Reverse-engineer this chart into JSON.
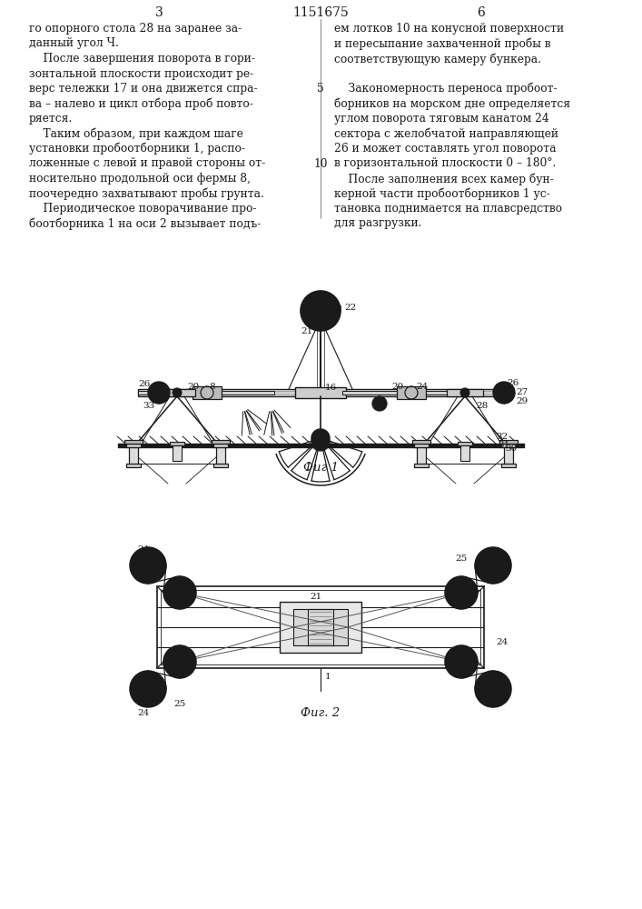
{
  "patent_number": "1151675",
  "page_left": "3",
  "page_right": "6",
  "background_color": "#ffffff",
  "fig1_caption": "Фиг 1",
  "fig2_caption": "Фиг. 2",
  "left_col_lines": [
    "го опорного стола 28 на заранее за-",
    "данный угол Ч.",
    "    После завершения поворота в гори-",
    "зонтальной плоскости происходит ре-",
    "верс тележки 17 и она движется спра-",
    "ва – налево и цикл отбора проб повто-",
    "ряется.",
    "    Таким образом, при каждом шаге",
    "установки пробоотборники 1, распо-",
    "ложенные с левой и правой стороны от-",
    "носительно продольной оси фермы 8,",
    "поочередно захватывают пробы грунта.",
    "    Периодическое поворачивание про-",
    "боотборника 1 на оси 2 вызывает подъ-"
  ],
  "right_col_lines": [
    "ем лотков 10 на конусной поверхности",
    "и пересыпание захваченной пробы в",
    "соответствующую камеру бункера.",
    "",
    "    Закономерность переноса пробоот-",
    "борников на морском дне определяется",
    "углом поворота тяговым канатом 24",
    "сектора с желобчатой направляющей",
    "26 и может составлять угол поворота",
    "в горизонтальной плоскости 0 – 180°.",
    "    После заполнения всех камер бун-",
    "керной части пробоотборников 1 ус-",
    "тановка поднимается на плавсредство",
    "для разгрузки."
  ]
}
